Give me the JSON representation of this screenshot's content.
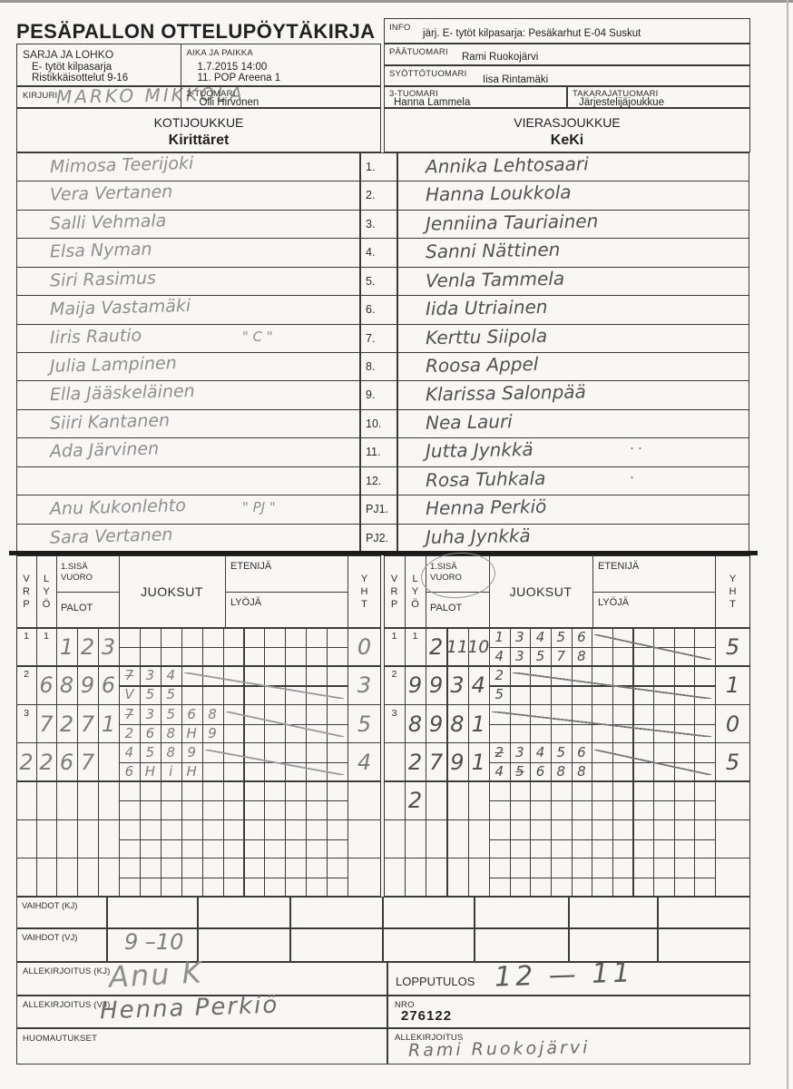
{
  "title": "PESÄPALLON OTTELUPÖYTÄKIRJA",
  "info": {
    "label": "INFO",
    "value": "järj. E- tytöt kilpasarja: Pesäkarhut E-04 Suskut"
  },
  "officials": {
    "sarja_label": "SARJA JA LOHKO",
    "sarja_line1": "E- tytöt kilpasarja",
    "sarja_line2": "Ristikkäisottelut 9-16",
    "aika_label": "AIKA JA PAIKKA",
    "aika_line1": "1.7.2015 14:00",
    "aika_line2": "11. POP Areena 1",
    "kirjuri_label": "KIRJURI",
    "kirjuri_value": "Marko Mikkola",
    "tuomari2_label": "2-TUOMARI",
    "tuomari2_value": "Olli Hirvonen",
    "paatuomari_label": "PÄÄTUOMARI",
    "paatuomari_value": "Rami Ruokojärvi",
    "syotto_label": "SYÖTTÖTUOMARI",
    "syotto_value": "Iisa Rintamäki",
    "tuomari3_label": "3-TUOMARI",
    "tuomari3_value": "Hanna Lammela",
    "takaraja_label": "TAKARAJATUOMARI",
    "takaraja_value": "Järjestelijäjoukkue"
  },
  "teams": {
    "home_heading": "KOTIJOUKKUE",
    "home_name": "Kirittäret",
    "away_heading": "VIERASJOUKKUE",
    "away_name": "KeKi"
  },
  "roster": [
    {
      "num": "1.",
      "home": "Mimosa Teerijoki",
      "away": "Annika Lehtosaari"
    },
    {
      "num": "2.",
      "home": "Vera Vertanen",
      "away": "Hanna Loukkola"
    },
    {
      "num": "3.",
      "home": "Salli Vehmala",
      "away": "Jenniina Tauriainen"
    },
    {
      "num": "4.",
      "home": "Elsa Nyman",
      "away": "Sanni Nättinen"
    },
    {
      "num": "5.",
      "home": "Siri Rasimus",
      "away": "Venla Tammela"
    },
    {
      "num": "6.",
      "home": "Maija Vastamäki",
      "away": "Iida Utriainen"
    },
    {
      "num": "7.",
      "home": "Iiris Rautio",
      "home_note": "\" C \"",
      "away": "Kerttu Siipola"
    },
    {
      "num": "8.",
      "home": "Julia Lampinen",
      "away": "Roosa Appel"
    },
    {
      "num": "9.",
      "home": "Ella Jääskeläinen",
      "away": "Klarissa Salonpää"
    },
    {
      "num": "10.",
      "home": "Siiri Kantanen",
      "away": "Nea Lauri"
    },
    {
      "num": "11.",
      "home": "Ada Järvinen",
      "away": "Jutta Jynkkä",
      "away_note": "· ·"
    },
    {
      "num": "12.",
      "home": "",
      "away": "Rosa Tuhkala",
      "away_note": "·"
    },
    {
      "num": "PJ1.",
      "home": "Anu Kukonlehto",
      "home_note": "\" PJ \"",
      "away": "Henna Perkiö"
    },
    {
      "num": "PJ2.",
      "home": "Sara Vertanen",
      "away": "Juha Jynkkä"
    }
  ],
  "score_headers": {
    "vrp": [
      "V",
      "R",
      "P"
    ],
    "lyo": [
      "L",
      "Y",
      "Ö"
    ],
    "sisa_line1": "1.SISÄ",
    "sisa_line2": "VUORO",
    "palot": "PALOT",
    "juoksut": "JUOKSUT",
    "etenija": "ETENIJÄ",
    "lyoja": "LYÖJÄ",
    "yht": [
      "Y",
      "H",
      "T"
    ]
  },
  "score_left": [
    {
      "num": "1",
      "vrp": "",
      "lyo": "1",
      "lyo_printed": true,
      "palot": [
        "1",
        "2",
        "3"
      ],
      "top": [],
      "bot": [],
      "yht": "0",
      "strike_from": -1
    },
    {
      "num": "2",
      "vrp": "",
      "lyo": "6",
      "palot": [
        "8",
        "9",
        "6"
      ],
      "top": [
        {
          "v": "7",
          "x": true
        },
        "3",
        "4"
      ],
      "bot": [
        "V",
        "5",
        "5"
      ],
      "yht": "3",
      "strike_from": 3
    },
    {
      "num": "3",
      "vrp": "",
      "lyo": "7",
      "palot": [
        "2",
        "7",
        "1"
      ],
      "top": [
        {
          "v": "7",
          "x": true
        },
        "3",
        "5",
        "6",
        "8"
      ],
      "bot": [
        "2",
        "6",
        "8",
        "H",
        "9"
      ],
      "yht": "5",
      "strike_from": 5
    },
    {
      "num": "",
      "vrp": "2",
      "lyo": "2",
      "palot": [
        "6",
        "7",
        ""
      ],
      "top": [
        "4",
        "5",
        "8",
        "9"
      ],
      "bot": [
        "6",
        "H",
        "i",
        "H"
      ],
      "yht": "4",
      "strike_from": 4
    },
    {
      "num": "",
      "vrp": "",
      "lyo": "",
      "palot": [
        "",
        "",
        ""
      ],
      "top": [],
      "bot": [],
      "yht": "",
      "strike_from": -1
    },
    {
      "num": "",
      "vrp": "",
      "lyo": "",
      "palot": [
        "",
        "",
        ""
      ],
      "top": [],
      "bot": [],
      "yht": "",
      "strike_from": -1
    },
    {
      "num": "",
      "vrp": "",
      "lyo": "",
      "palot": [
        "",
        "",
        ""
      ],
      "top": [],
      "bot": [],
      "yht": "",
      "strike_from": -1
    }
  ],
  "score_right": [
    {
      "num": "1",
      "vrp": "",
      "lyo": "1",
      "lyo_printed": true,
      "palot": [
        "2",
        "11",
        "10"
      ],
      "top": [
        "1",
        "3",
        "4",
        "5",
        "6"
      ],
      "bot": [
        "4",
        "3",
        "5",
        "7",
        "8"
      ],
      "yht": "5",
      "strike_from": 5
    },
    {
      "num": "2",
      "vrp": "",
      "lyo": "9",
      "palot": [
        "9",
        "3",
        "4"
      ],
      "top": [
        "2"
      ],
      "bot": [
        "5"
      ],
      "yht": "1",
      "strike_from": 1
    },
    {
      "num": "3",
      "vrp": "",
      "lyo": "8",
      "palot": [
        "9",
        "8",
        "1"
      ],
      "top": [],
      "bot": [],
      "yht": "0",
      "strike_from": 0
    },
    {
      "num": "",
      "vrp": "",
      "lyo": "2",
      "palot": [
        "7",
        "9",
        "1"
      ],
      "top": [
        {
          "v": "2",
          "x": true
        },
        "3",
        "4",
        "5",
        "6"
      ],
      "bot": [
        "4",
        {
          "v": "5",
          "x": true
        },
        "6",
        "8",
        "8"
      ],
      "yht": "5",
      "strike_from": 5
    },
    {
      "num": "",
      "vrp": "",
      "lyo": "2",
      "palot": [
        "",
        "",
        ""
      ],
      "top": [],
      "bot": [],
      "yht": "",
      "strike_from": -1
    },
    {
      "num": "",
      "vrp": "",
      "lyo": "",
      "palot": [
        "",
        "",
        ""
      ],
      "top": [],
      "bot": [],
      "yht": "",
      "strike_from": -1
    },
    {
      "num": "",
      "vrp": "",
      "lyo": "",
      "palot": [
        "",
        "",
        ""
      ],
      "top": [],
      "bot": [],
      "yht": "",
      "strike_from": -1
    }
  ],
  "bottom": {
    "vaihdot_kj_label": "VAIHDOT (KJ)",
    "vaihdot_vj_label": "VAIHDOT (VJ)",
    "vaihdot_vj_value": "9 –10",
    "allekirjoitus_kj_label": "ALLEKIRJOITUS (KJ)",
    "allekirjoitus_kj_sig": "Anu K",
    "allekirjoitus_vj_label": "ALLEKIRJOITUS (VJ)",
    "allekirjoitus_vj_sig": "Henna Perkiö",
    "huomautukset_label": "HUOMAUTUKSET",
    "lopputulos_label": "LOPPUTULOS",
    "lopputulos_value": "12 — 11",
    "nro_label": "NRO",
    "nro_value": "276122",
    "allekirjoitus_label": "ALLEKIRJOITUS",
    "allekirjoitus_sig": "Rami  Ruokojärvi"
  }
}
